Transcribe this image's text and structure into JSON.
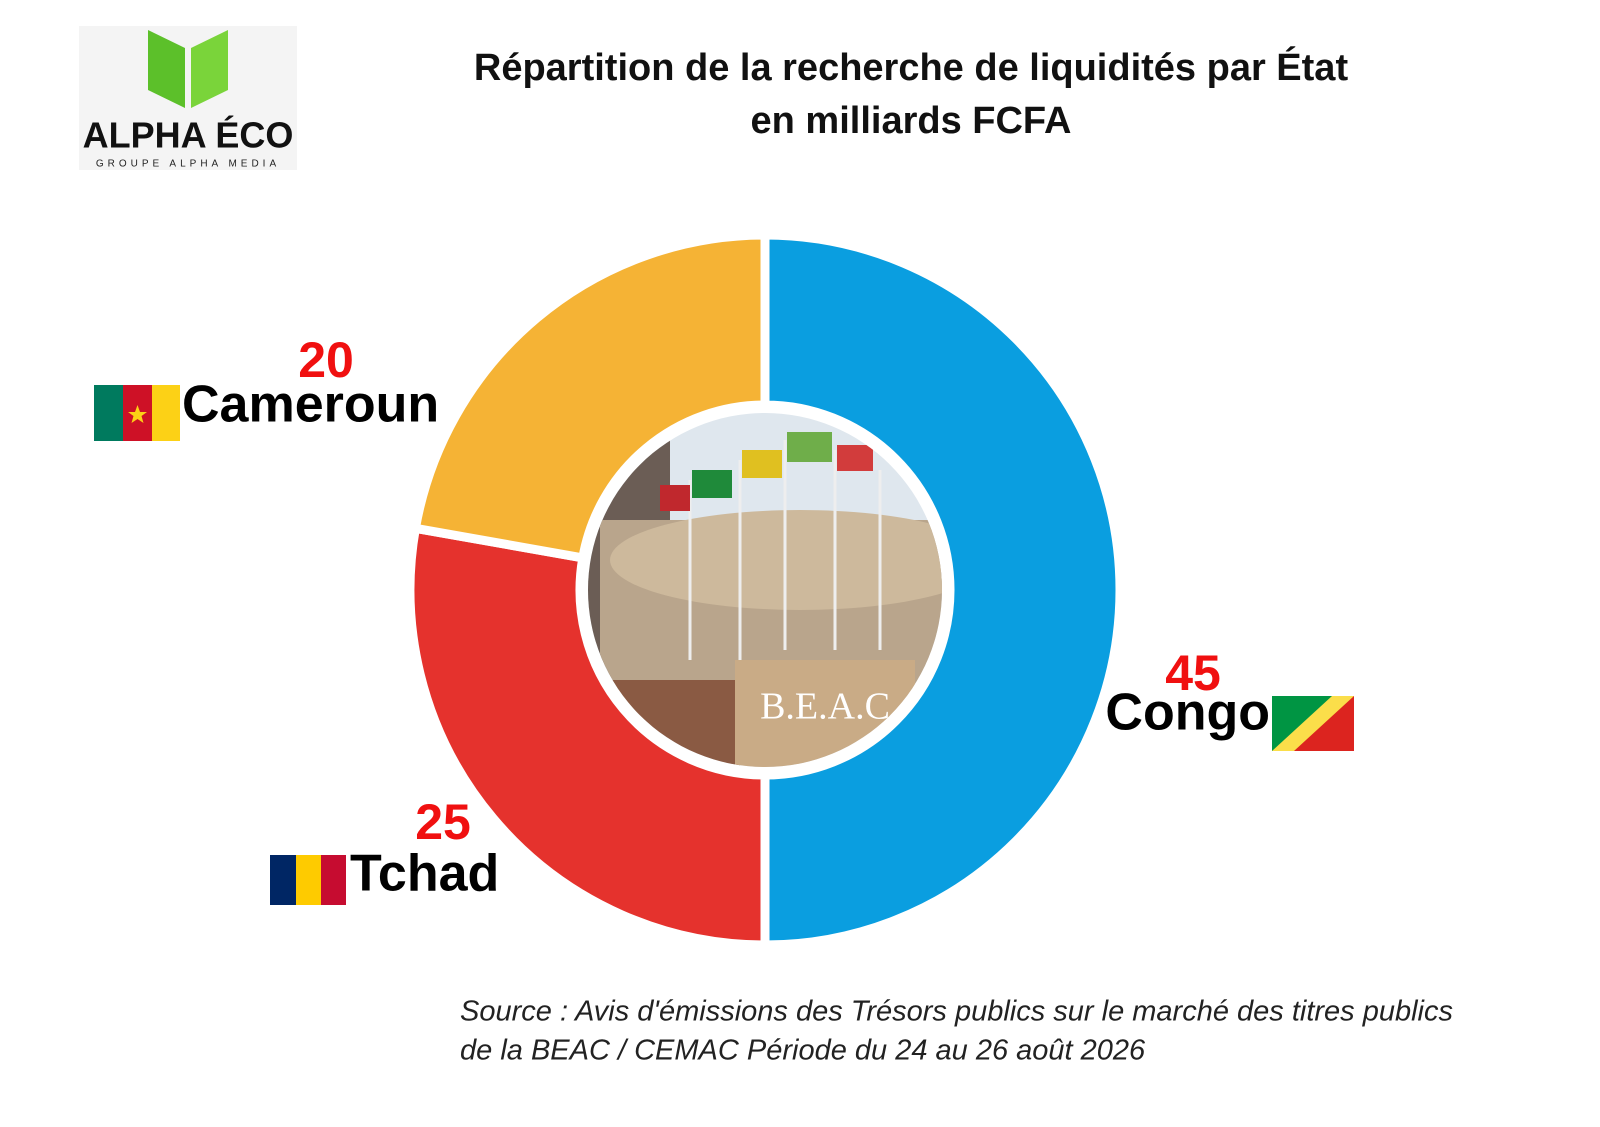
{
  "chart_data": {
    "type": "donut",
    "title": "Répartition de la recherche de liquidités par État",
    "subtitle": "en milliards FCFA",
    "categories": [
      "Congo",
      "Tchad",
      "Cameroun"
    ],
    "values": [
      45,
      25,
      20
    ],
    "colors": [
      "#0a9ee0",
      "#e5322d",
      "#f5b335"
    ],
    "source": [
      "Source : Avis d'émissions des Trésors publics sur le marché des titres publics",
      "de la BEAC / CEMAC Période du 24 au 26 août 2026"
    ]
  },
  "logo": {
    "name": "ALPHA ÉCO",
    "tagline": "GROUPE ALPHA MEDIA"
  }
}
